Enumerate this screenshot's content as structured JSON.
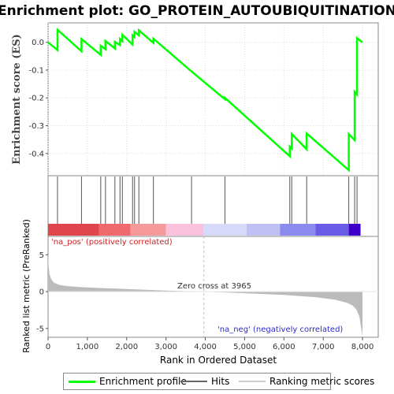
{
  "chart_data": {
    "type": "line",
    "title": "Enrichment plot: GO_PROTEIN_AUTOUBIQUITINATION",
    "panels": {
      "enrichment": {
        "ylabel": "Enrichment score (ES)",
        "ylim": [
          -0.48,
          0.07
        ],
        "yticks": [
          0.0,
          -0.1,
          -0.2,
          -0.3,
          -0.4
        ],
        "ytick_labels": [
          "0.0",
          "-0.1",
          "-0.2",
          "-0.3",
          "-0.4"
        ],
        "color": "#00ff00",
        "grid": true,
        "series": [
          {
            "x": [
              0,
              240,
              240,
              850,
              850,
              1340,
              1340,
              1460,
              1460,
              1700,
              1700,
              1830,
              1830,
              1890,
              1890,
              2150,
              2150,
              2200,
              2200,
              2310,
              2310,
              2680,
              2680,
              3650,
              4500,
              4500,
              6150,
              6150,
              6200,
              6200,
              6580,
              6580,
              7650,
              7650,
              7800,
              7800,
              7860,
              7860,
              8000
            ],
            "y": [
              0.0,
              -0.028,
              0.045,
              -0.032,
              0.012,
              -0.045,
              -0.012,
              -0.025,
              0.005,
              -0.022,
              0.002,
              -0.01,
              0.012,
              0.004,
              0.027,
              -0.008,
              0.025,
              0.019,
              0.038,
              0.025,
              0.043,
              -0.002,
              0.013,
              -0.105,
              -0.205,
              -0.2,
              -0.41,
              -0.375,
              -0.382,
              -0.33,
              -0.385,
              -0.328,
              -0.46,
              -0.33,
              -0.352,
              -0.178,
              -0.188,
              0.015,
              0.0
            ]
          }
        ]
      },
      "hits": {
        "positions": [
          240,
          850,
          1340,
          1460,
          1700,
          1830,
          1890,
          2150,
          2200,
          2310,
          2680,
          3650,
          4500,
          6150,
          6200,
          6580,
          7650,
          7800,
          7860
        ],
        "gradient_segments": [
          {
            "start": 0,
            "end": 1300,
            "color": "#e0454c"
          },
          {
            "start": 1300,
            "end": 2100,
            "color": "#ee6a6e"
          },
          {
            "start": 2100,
            "end": 3000,
            "color": "#f5999a"
          },
          {
            "start": 3000,
            "end": 3950,
            "color": "#fbc0dc"
          },
          {
            "start": 3950,
            "end": 5050,
            "color": "#d8d8f8"
          },
          {
            "start": 5050,
            "end": 5900,
            "color": "#c0c0f4"
          },
          {
            "start": 5900,
            "end": 6800,
            "color": "#8a8aef"
          },
          {
            "start": 6800,
            "end": 7650,
            "color": "#6a5ce6"
          },
          {
            "start": 7650,
            "end": 7950,
            "color": "#4000c8"
          }
        ]
      },
      "ranked_metric": {
        "ylabel": "Ranked list metric (PreRanked)",
        "ylim": [
          -6.2,
          7.5
        ],
        "yticks": [
          5,
          0,
          -5
        ],
        "ytick_labels": [
          "5",
          "0",
          "-5"
        ],
        "color": "#bbbbbb",
        "curve": {
          "x": [
            0,
            15,
            40,
            80,
            150,
            300,
            500,
            800,
            1200,
            2000,
            3000,
            3965,
            5000,
            6000,
            6800,
            7300,
            7600,
            7750,
            7850,
            7920,
            7960,
            8000
          ],
          "y": [
            5.3,
            3.5,
            2.3,
            1.7,
            1.2,
            0.9,
            0.75,
            0.62,
            0.52,
            0.35,
            0.15,
            0.0,
            -0.22,
            -0.45,
            -0.75,
            -1.1,
            -1.5,
            -1.9,
            -2.5,
            -3.4,
            -4.8,
            -6.0
          ]
        },
        "zero_cross": 3965,
        "label_pos": "'na_pos' (positively correlated)",
        "label_neg": "'na_neg' (negatively correlated)",
        "label_zero": "Zero cross at 3965"
      }
    },
    "xlabel": "Rank in Ordered Dataset",
    "xlim": [
      0,
      8400
    ],
    "xticks": [
      0,
      1000,
      2000,
      3000,
      4000,
      5000,
      6000,
      7000,
      8000
    ],
    "xtick_labels": [
      "0",
      "1,000",
      "2,000",
      "3,000",
      "4,000",
      "5,000",
      "6,000",
      "7,000",
      "8,000"
    ],
    "legend": {
      "placement": "bottom",
      "entries": [
        {
          "label": "Enrichment profile",
          "color": "#00ff00"
        },
        {
          "label": "Hits",
          "color": "#666666"
        },
        {
          "label": "Ranking metric scores",
          "color": "#cccccc"
        }
      ]
    }
  }
}
